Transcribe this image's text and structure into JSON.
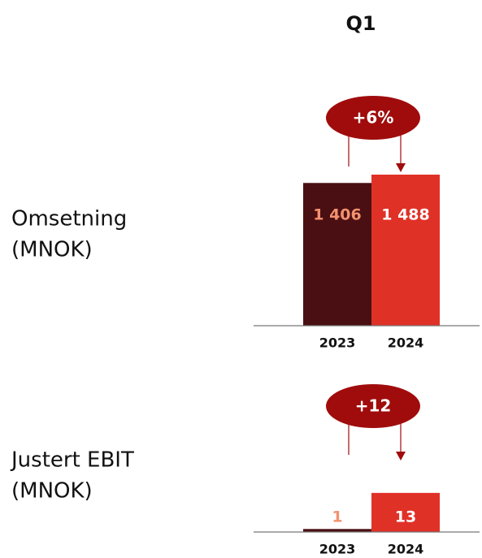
{
  "title": "Q1",
  "chart_data": [
    {
      "type": "bar",
      "title": "Omsetning",
      "subtitle": "(MNOK)",
      "categories": [
        "2023",
        "2024"
      ],
      "values": [
        1406,
        1488
      ],
      "value_labels": [
        "1 406",
        "1 488"
      ],
      "colors": [
        "#4a0f12",
        "#e03127"
      ],
      "label_colors": [
        "#f4916f",
        "#ffffff"
      ],
      "annotation": "+6%",
      "annotation_color": "#a00c0c",
      "ylim": [
        0,
        1600
      ]
    },
    {
      "type": "bar",
      "title": "Justert EBIT",
      "subtitle": "(MNOK)",
      "categories": [
        "2023",
        "2024"
      ],
      "values": [
        1,
        13
      ],
      "colors": [
        "#4a0f12",
        "#e03127"
      ],
      "label_colors": [
        "#f4916f",
        "#ffffff"
      ],
      "annotation": "+12",
      "annotation_color": "#a00c0c",
      "ylim": [
        0,
        54
      ]
    }
  ]
}
